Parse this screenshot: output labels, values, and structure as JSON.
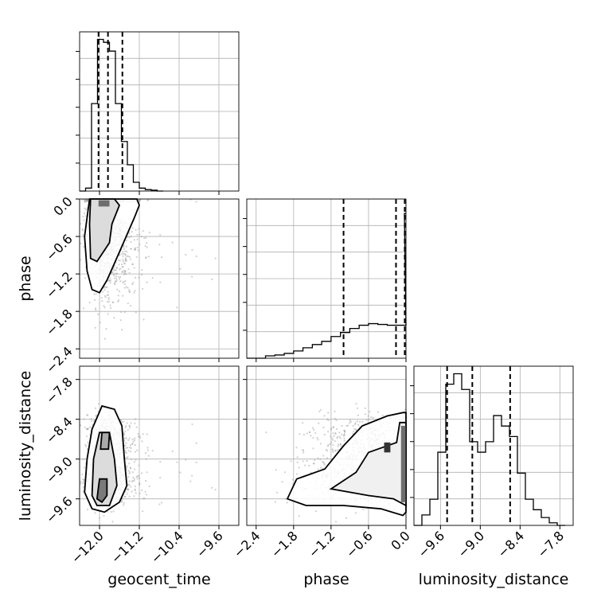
{
  "chart_data": {
    "type": "corner",
    "parameters": [
      "geocent_time",
      "phase",
      "luminosity_distance"
    ],
    "axis_labels": {
      "geocent_time": "geocent_time",
      "phase": "phase",
      "luminosity_distance": "luminosity_distance"
    },
    "ranges": {
      "geocent_time": [
        -12.4,
        -9.2
      ],
      "phase": [
        -2.55,
        0.0
      ],
      "luminosity_distance": [
        -10.0,
        -7.6
      ]
    },
    "ticks": {
      "geocent_time": [
        -12.0,
        -11.2,
        -10.4,
        -9.6
      ],
      "phase": [
        -2.4,
        -1.8,
        -1.2,
        -0.6,
        0.0
      ],
      "luminosity_distance": [
        -9.6,
        -9.0,
        -8.4,
        -7.8
      ]
    },
    "tick_labels": {
      "geocent_time": [
        "−12.0",
        "−11.2",
        "−10.4",
        "−9.6"
      ],
      "phase": [
        "−2.4",
        "−1.8",
        "−1.2",
        "−0.6",
        "0.0"
      ],
      "luminosity_distance": [
        "−9.6",
        "−9.0",
        "−8.4",
        "−7.8"
      ]
    },
    "quantiles": {
      "geocent_time": [
        -12.02,
        -11.83,
        -11.54
      ],
      "phase": [
        -1.0,
        -0.16,
        -0.02
      ],
      "luminosity_distance": [
        -9.5,
        -9.12,
        -8.55
      ]
    },
    "histograms": {
      "geocent_time": {
        "bins": [
          -12.4,
          -12.28,
          -12.16,
          -12.04,
          -11.92,
          -11.8,
          -11.68,
          -11.56,
          -11.44,
          -11.32,
          -11.2,
          -11.08,
          -10.96,
          -10.84,
          -10.72
        ],
        "counts": [
          0,
          1,
          30,
          52,
          51,
          48,
          30,
          17,
          9,
          3,
          1,
          0.5,
          0.3,
          0
        ]
      },
      "phase": {
        "bins": [
          -2.55,
          -2.4,
          -2.25,
          -2.1,
          -1.95,
          -1.8,
          -1.65,
          -1.5,
          -1.35,
          -1.2,
          -1.05,
          -0.9,
          -0.75,
          -0.6,
          -0.45,
          -0.3,
          -0.15,
          0.0
        ],
        "counts": [
          0,
          0,
          0.3,
          0.4,
          0.6,
          0.9,
          1.3,
          1.7,
          2.1,
          2.7,
          3.2,
          3.7,
          4.1,
          4.3,
          4.2,
          4.1,
          4.1
        ],
        "edge_spike": 18
      },
      "luminosity_distance": {
        "bins": [
          -10.0,
          -9.88,
          -9.76,
          -9.64,
          -9.52,
          -9.4,
          -9.28,
          -9.16,
          -9.04,
          -8.92,
          -8.8,
          -8.68,
          -8.56,
          -8.44,
          -8.32,
          -8.2,
          -8.08,
          -7.96,
          -7.84,
          -7.72
        ],
        "counts": [
          0,
          2,
          5,
          14,
          27,
          29,
          26,
          16,
          14,
          16,
          21,
          19,
          17,
          10,
          5,
          3,
          1.5,
          0.5,
          0
        ]
      }
    },
    "grid": true
  }
}
